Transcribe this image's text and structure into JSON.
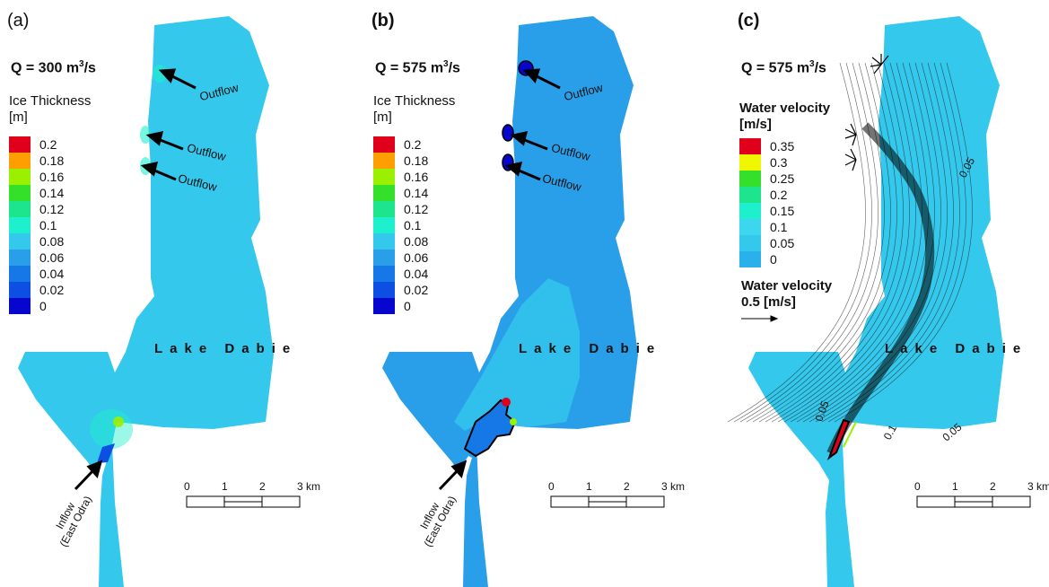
{
  "panels": [
    {
      "label": "(a)",
      "discharge": {
        "prefix": "Q = 300 m",
        "exp": "3",
        "suffix": "/s"
      },
      "legend_title_lines": [
        "Ice Thickness",
        "[m]"
      ],
      "legend_labels": [
        "0.2",
        "0.18",
        "0.16",
        "0.14",
        "0.12",
        "0.1",
        "0.08",
        "0.06",
        "0.04",
        "0.02",
        "0"
      ],
      "arrow_labels": [
        "Outflow",
        "Outflow",
        "Outflow"
      ],
      "lake_label": "Lake  Dabie",
      "inflow_lines": [
        "Inflow",
        "(East Odra)"
      ],
      "scale_ticks": [
        "0",
        "1",
        "2",
        "3 km"
      ]
    },
    {
      "label": "(b)",
      "discharge": {
        "prefix": "Q = 575 m",
        "exp": "3",
        "suffix": "/s"
      },
      "legend_title_lines": [
        "Ice Thickness",
        "[m]"
      ],
      "legend_labels": [
        "0.2",
        "0.18",
        "0.16",
        "0.14",
        "0.12",
        "0.1",
        "0.08",
        "0.06",
        "0.04",
        "0.02",
        "0"
      ],
      "arrow_labels": [
        "Outflow",
        "Outflow",
        "Outflow"
      ],
      "lake_label": "Lake  Dabie",
      "inflow_lines": [
        "Inflow",
        "(East Odra)"
      ],
      "scale_ticks": [
        "0",
        "1",
        "2",
        "3 km"
      ]
    },
    {
      "label": "(c)",
      "discharge": {
        "prefix": "Q = 575 m",
        "exp": "3",
        "suffix": "/s"
      },
      "legend_title_lines": [
        "Water velocity",
        "[m/s]"
      ],
      "legend_labels": [
        "0.35",
        "0.3",
        "0.25",
        "0.2",
        "0.15",
        "0.1",
        "0.05",
        "0"
      ],
      "ref_vector_lines": [
        "Water velocity",
        "0.5 [m/s]"
      ],
      "lake_label": "Lake  Dabie",
      "contour_labels": [
        "0.05",
        "0.05",
        "0.1",
        "0.05"
      ],
      "scale_ticks": [
        "0",
        "1",
        "2",
        "3 km"
      ]
    }
  ],
  "colors": {
    "ice_scale": [
      "#e0001b",
      "#ff9e00",
      "#9af000",
      "#35e02a",
      "#1de58e",
      "#1ef0cd",
      "#33c8ec",
      "#2a9fe9",
      "#1677e7",
      "#0d4fe3",
      "#0606cd"
    ],
    "velocity_scale": [
      "#e0001b",
      "#f0f500",
      "#35e02a",
      "#1de58e",
      "#1ef0cd",
      "#3cd6ef",
      "#33c8ec",
      "#2ab0ea"
    ],
    "lake_a": "#33c8ec",
    "lake_b": "#2a9fe9",
    "lake_b_light": "#33c8ec",
    "lake_c": "#33c8ec"
  }
}
